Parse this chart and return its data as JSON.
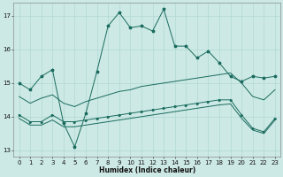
{
  "xlabel": "Humidex (Indice chaleur)",
  "xlim": [
    -0.5,
    23.5
  ],
  "ylim": [
    12.8,
    17.4
  ],
  "yticks": [
    13,
    14,
    15,
    16,
    17
  ],
  "xticks": [
    0,
    1,
    2,
    3,
    4,
    5,
    6,
    7,
    8,
    9,
    10,
    11,
    12,
    13,
    14,
    15,
    16,
    17,
    18,
    19,
    20,
    21,
    22,
    23
  ],
  "bg_color": "#cce9e5",
  "line_color": "#1a6b5e",
  "grid_color": "#aad4cf",
  "line1_y": [
    15.0,
    14.8,
    15.2,
    15.4,
    13.8,
    13.1,
    14.1,
    15.35,
    16.7,
    17.1,
    16.65,
    16.7,
    16.55,
    17.2,
    16.1,
    16.1,
    15.75,
    15.95,
    15.6,
    15.2,
    15.05,
    15.2,
    15.15,
    15.2
  ],
  "line2_y": [
    14.05,
    13.85,
    13.85,
    14.05,
    13.85,
    13.85,
    13.9,
    13.95,
    14.0,
    14.05,
    14.1,
    14.15,
    14.2,
    14.25,
    14.3,
    14.35,
    14.4,
    14.45,
    14.5,
    14.5,
    14.05,
    13.65,
    13.55,
    13.95
  ],
  "line3_y": [
    13.95,
    13.75,
    13.75,
    13.9,
    13.7,
    13.7,
    13.75,
    13.8,
    13.85,
    13.9,
    13.95,
    14.0,
    14.05,
    14.1,
    14.15,
    14.2,
    14.25,
    14.3,
    14.35,
    14.38,
    13.95,
    13.6,
    13.5,
    13.9
  ],
  "line4_y": [
    14.6,
    14.4,
    14.55,
    14.65,
    14.4,
    14.3,
    14.45,
    14.55,
    14.65,
    14.75,
    14.8,
    14.9,
    14.95,
    15.0,
    15.05,
    15.1,
    15.15,
    15.2,
    15.25,
    15.3,
    15.0,
    14.6,
    14.5,
    14.8
  ]
}
